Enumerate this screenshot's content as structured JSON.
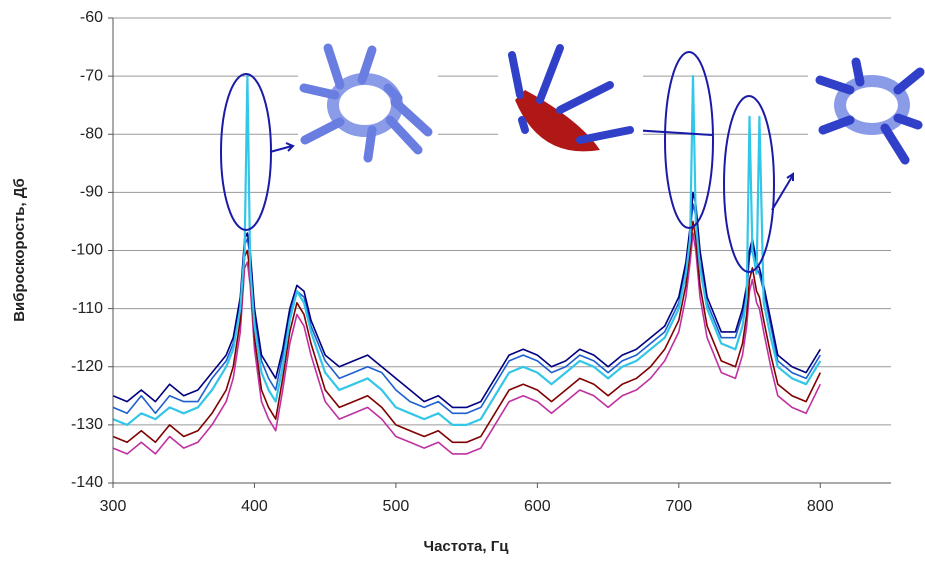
{
  "chart_data": {
    "type": "line",
    "x_label": "Частота, Гц",
    "y_label": "Виброскорость, Дб",
    "xlim": [
      300,
      850
    ],
    "xticks": [
      300,
      400,
      500,
      600,
      700,
      800
    ],
    "ylim": [
      -140,
      -60
    ],
    "yticks": [
      -140,
      -130,
      -120,
      -110,
      -100,
      -90,
      -80,
      -70,
      -60
    ],
    "grid": true,
    "x": [
      300,
      310,
      320,
      330,
      340,
      350,
      360,
      370,
      380,
      385,
      390,
      393,
      395,
      397,
      400,
      405,
      410,
      415,
      420,
      425,
      430,
      435,
      440,
      450,
      460,
      470,
      480,
      490,
      500,
      510,
      520,
      530,
      540,
      550,
      560,
      570,
      580,
      590,
      600,
      610,
      620,
      630,
      640,
      650,
      660,
      670,
      680,
      690,
      700,
      705,
      708,
      710,
      712,
      715,
      720,
      730,
      740,
      745,
      748,
      750,
      752,
      755,
      757,
      760,
      765,
      770,
      780,
      790,
      800
    ],
    "series": [
      {
        "color": "#c030a0",
        "values": [
          -134,
          -135,
          -133,
          -135,
          -132,
          -134,
          -133,
          -130,
          -126,
          -122,
          -114,
          -103,
          -102,
          -106,
          -117,
          -126,
          -129,
          -131,
          -124,
          -116,
          -111,
          -113,
          -118,
          -126,
          -129,
          -128,
          -127,
          -129,
          -132,
          -133,
          -134,
          -133,
          -135,
          -135,
          -134,
          -130,
          -126,
          -125,
          -126,
          -128,
          -126,
          -124,
          -125,
          -127,
          -125,
          -124,
          -122,
          -119,
          -114,
          -108,
          -102,
          -97,
          -100,
          -108,
          -115,
          -121,
          -122,
          -118,
          -113,
          -107,
          -105,
          -109,
          -110,
          -114,
          -120,
          -125,
          -127,
          -128,
          -123
        ]
      },
      {
        "color": "#800000",
        "values": [
          -132,
          -133,
          -131,
          -133,
          -130,
          -132,
          -131,
          -128,
          -124,
          -120,
          -112,
          -101,
          -100,
          -104,
          -115,
          -124,
          -127,
          -129,
          -122,
          -114,
          -109,
          -111,
          -116,
          -124,
          -127,
          -126,
          -125,
          -127,
          -130,
          -131,
          -132,
          -131,
          -133,
          -133,
          -132,
          -128,
          -124,
          -123,
          -124,
          -126,
          -124,
          -122,
          -123,
          -125,
          -123,
          -122,
          -120,
          -117,
          -112,
          -106,
          -100,
          -95,
          -98,
          -106,
          -113,
          -119,
          -120,
          -116,
          -111,
          -105,
          -103,
          -107,
          -108,
          -112,
          -118,
          -123,
          -125,
          -126,
          -121
        ]
      },
      {
        "color": "#1e5fd0",
        "values": [
          -127,
          -128,
          -125,
          -128,
          -125,
          -126,
          -126,
          -122,
          -119,
          -116,
          -109,
          -99,
          -98,
          -101,
          -111,
          -119,
          -122,
          -124,
          -118,
          -111,
          -107,
          -108,
          -113,
          -119,
          -122,
          -121,
          -120,
          -121,
          -124,
          -126,
          -127,
          -126,
          -128,
          -128,
          -127,
          -123,
          -119,
          -118,
          -119,
          -121,
          -120,
          -118,
          -119,
          -121,
          -119,
          -118,
          -116,
          -114,
          -109,
          -103,
          -97,
          -92,
          -94,
          -102,
          -109,
          -115,
          -115,
          -111,
          -107,
          -101,
          -99,
          -103,
          -104,
          -107,
          -113,
          -119,
          -121,
          -122,
          -118
        ]
      },
      {
        "color": "#000080",
        "values": [
          -125,
          -126,
          -124,
          -126,
          -123,
          -125,
          -124,
          -121,
          -118,
          -115,
          -108,
          -98,
          -97,
          -100,
          -110,
          -118,
          -120,
          -122,
          -117,
          -110,
          -106,
          -107,
          -112,
          -118,
          -120,
          -119,
          -118,
          -120,
          -122,
          -124,
          -126,
          -125,
          -127,
          -127,
          -126,
          -122,
          -118,
          -117,
          -118,
          -120,
          -119,
          -117,
          -118,
          -120,
          -118,
          -117,
          -115,
          -113,
          -108,
          -102,
          -96,
          -90,
          -92,
          -100,
          -108,
          -114,
          -114,
          -110,
          -106,
          -100,
          -98,
          -102,
          -103,
          -106,
          -112,
          -118,
          -120,
          -121,
          -117
        ]
      },
      {
        "color": "#33c6e8",
        "values": [
          -129,
          -130,
          -128,
          -129,
          -127,
          -128,
          -127,
          -124,
          -120,
          -117,
          -110,
          -100,
          -70,
          -103,
          -113,
          -121,
          -124,
          -126,
          -120,
          -112,
          -107,
          -109,
          -114,
          -121,
          -124,
          -123,
          -122,
          -124,
          -127,
          -128,
          -129,
          -128,
          -130,
          -130,
          -129,
          -125,
          -121,
          -120,
          -121,
          -123,
          -121,
          -119,
          -120,
          -122,
          -120,
          -119,
          -117,
          -115,
          -110,
          -104,
          -98,
          -70,
          -95,
          -103,
          -110,
          -116,
          -117,
          -113,
          -108,
          -77,
          -100,
          -104,
          -77,
          -109,
          -115,
          -120,
          -122,
          -123,
          -119
        ]
      }
    ]
  }
}
